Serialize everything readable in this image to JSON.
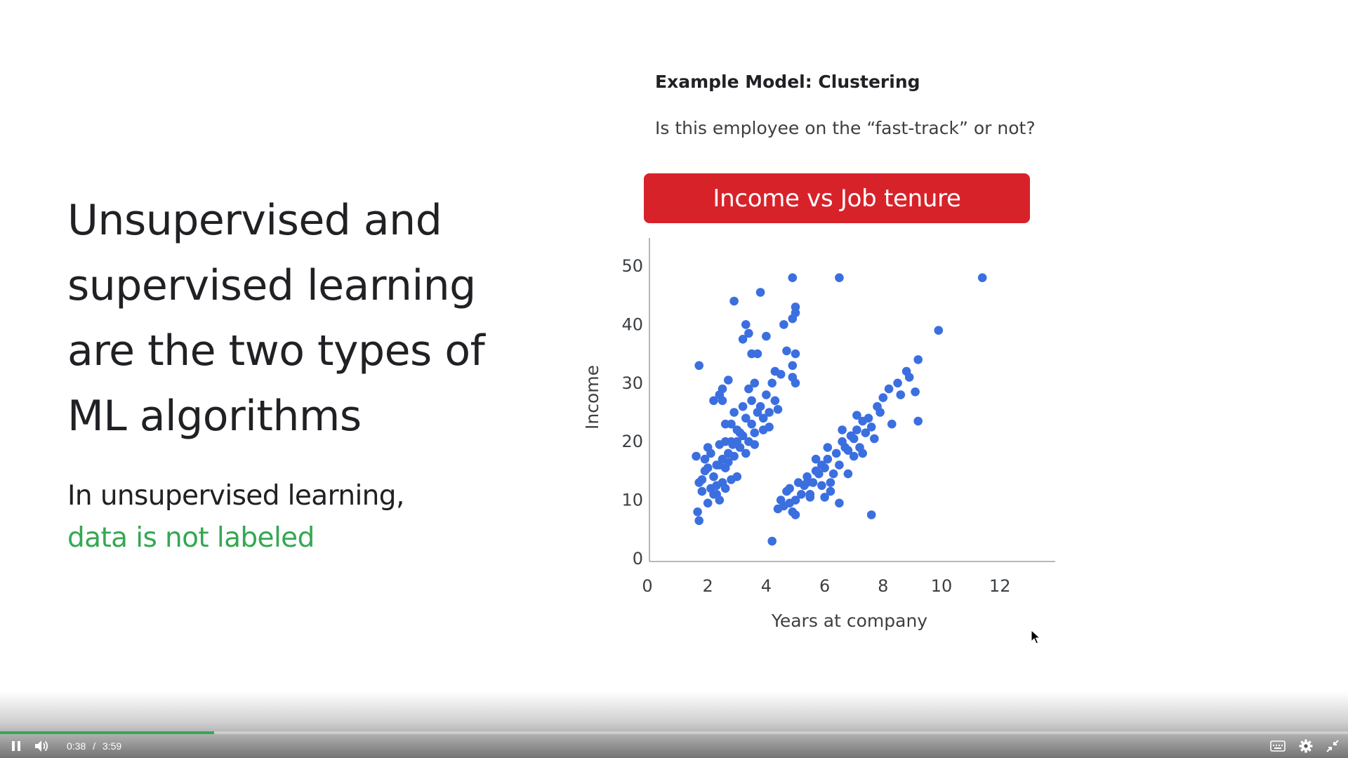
{
  "slide": {
    "heading": "Unsupervised and supervised learning are the two types of ML algorithms",
    "sub_line1": "In unsupervised learning,",
    "sub_line2": "data is not labeled",
    "example_title": "Example Model: Clustering",
    "example_question": "Is this employee on the “fast-track” or not?",
    "banner": "Income vs Job tenure",
    "banner_color": "#d8222a",
    "accent_green": "#34a853"
  },
  "chart_data": {
    "type": "scatter",
    "title": "Income vs Job tenure",
    "xlabel": "Years at company",
    "ylabel": "Income",
    "xlim": [
      0,
      14
    ],
    "ylim": [
      0,
      55
    ],
    "xticks": [
      0,
      2,
      4,
      6,
      8,
      10,
      12
    ],
    "yticks": [
      0,
      10,
      20,
      30,
      40,
      50
    ],
    "grid": false,
    "point_color": "#3b6fe0",
    "series": [
      {
        "points": [
          [
            1.6,
            17.5
          ],
          [
            1.7,
            13
          ],
          [
            1.8,
            11.5
          ],
          [
            1.9,
            15
          ],
          [
            1.7,
            6.5
          ],
          [
            1.65,
            8
          ],
          [
            2.0,
            9.5
          ],
          [
            2.1,
            12
          ],
          [
            2.2,
            14
          ],
          [
            2.0,
            19
          ],
          [
            1.9,
            17
          ],
          [
            2.3,
            16
          ],
          [
            2.1,
            18
          ],
          [
            2.4,
            19.5
          ],
          [
            2.5,
            17
          ],
          [
            2.3,
            11
          ],
          [
            2.5,
            13
          ],
          [
            2.6,
            15.5
          ],
          [
            2.7,
            18
          ],
          [
            2.8,
            20
          ],
          [
            2.9,
            17.5
          ],
          [
            2.6,
            12
          ],
          [
            2.8,
            13.5
          ],
          [
            3.0,
            14
          ],
          [
            2.7,
            16.5
          ],
          [
            3.1,
            19
          ],
          [
            3.2,
            21
          ],
          [
            3.3,
            18
          ],
          [
            3.0,
            22
          ],
          [
            3.4,
            20
          ],
          [
            3.5,
            23
          ],
          [
            3.6,
            21.5
          ],
          [
            3.3,
            24
          ],
          [
            3.7,
            25
          ],
          [
            3.5,
            27
          ],
          [
            3.8,
            26
          ],
          [
            3.9,
            24
          ],
          [
            4.0,
            28
          ],
          [
            4.1,
            22.5
          ],
          [
            3.6,
            30
          ],
          [
            3.4,
            29
          ],
          [
            3.2,
            26
          ],
          [
            2.9,
            25
          ],
          [
            2.8,
            23
          ],
          [
            2.6,
            23
          ],
          [
            2.5,
            27
          ],
          [
            2.4,
            28
          ],
          [
            2.2,
            27
          ],
          [
            2.5,
            29
          ],
          [
            2.7,
            30.5
          ],
          [
            1.7,
            33
          ],
          [
            2.9,
            44
          ],
          [
            3.8,
            45.5
          ],
          [
            3.3,
            40
          ],
          [
            3.2,
            37.5
          ],
          [
            3.4,
            38.5
          ],
          [
            3.5,
            35
          ],
          [
            3.7,
            35
          ],
          [
            4.0,
            38
          ],
          [
            4.3,
            27
          ],
          [
            4.5,
            31.5
          ],
          [
            4.7,
            35.5
          ],
          [
            4.6,
            40
          ],
          [
            4.9,
            41
          ],
          [
            4.9,
            48
          ],
          [
            5.0,
            43
          ],
          [
            5.0,
            42
          ],
          [
            5.0,
            35
          ],
          [
            4.9,
            33
          ],
          [
            4.9,
            31
          ],
          [
            5.0,
            30
          ],
          [
            4.3,
            32
          ],
          [
            4.2,
            30
          ],
          [
            3.1,
            21.5
          ],
          [
            3.0,
            20
          ],
          [
            2.85,
            19.5
          ],
          [
            2.6,
            20
          ],
          [
            2.4,
            16
          ],
          [
            2.3,
            12.5
          ],
          [
            2.4,
            10
          ],
          [
            2.2,
            11
          ],
          [
            2.0,
            15.5
          ],
          [
            1.8,
            13.5
          ],
          [
            3.6,
            19.5
          ],
          [
            3.9,
            22
          ],
          [
            4.1,
            25
          ],
          [
            4.4,
            25.5
          ]
        ]
      },
      {
        "points": [
          [
            4.2,
            3
          ],
          [
            4.5,
            10
          ],
          [
            4.4,
            8.5
          ],
          [
            4.6,
            9
          ],
          [
            4.7,
            11.5
          ],
          [
            4.8,
            12
          ],
          [
            4.9,
            8
          ],
          [
            5.0,
            7.5
          ],
          [
            5.1,
            13
          ],
          [
            5.2,
            11
          ],
          [
            5.3,
            12.5
          ],
          [
            5.4,
            14
          ],
          [
            5.5,
            10.5
          ],
          [
            5.6,
            13
          ],
          [
            5.7,
            15
          ],
          [
            5.8,
            14.5
          ],
          [
            5.9,
            16
          ],
          [
            6.0,
            15.5
          ],
          [
            6.1,
            17
          ],
          [
            6.2,
            13
          ],
          [
            6.3,
            14.5
          ],
          [
            6.4,
            18
          ],
          [
            6.5,
            16
          ],
          [
            6.6,
            20
          ],
          [
            6.7,
            19
          ],
          [
            6.8,
            18.5
          ],
          [
            6.9,
            21
          ],
          [
            7.0,
            20.5
          ],
          [
            7.1,
            22
          ],
          [
            7.2,
            19
          ],
          [
            7.3,
            23.5
          ],
          [
            7.4,
            21.5
          ],
          [
            7.5,
            24
          ],
          [
            7.6,
            22.5
          ],
          [
            7.7,
            20.5
          ],
          [
            7.8,
            26
          ],
          [
            7.9,
            25
          ],
          [
            8.0,
            27.5
          ],
          [
            8.2,
            29
          ],
          [
            8.3,
            23
          ],
          [
            8.5,
            30
          ],
          [
            8.6,
            28
          ],
          [
            8.8,
            32
          ],
          [
            8.9,
            31
          ],
          [
            9.1,
            28.5
          ],
          [
            9.2,
            23.5
          ],
          [
            9.2,
            34
          ],
          [
            6.5,
            9.5
          ],
          [
            7.6,
            7.5
          ],
          [
            6.2,
            11.5
          ],
          [
            5.9,
            12.5
          ],
          [
            6.0,
            10.5
          ],
          [
            5.5,
            11
          ],
          [
            6.8,
            14.5
          ],
          [
            7.3,
            18
          ],
          [
            7.0,
            17.5
          ],
          [
            6.6,
            22
          ],
          [
            7.1,
            24.5
          ],
          [
            5.7,
            17
          ],
          [
            6.1,
            19
          ],
          [
            5.4,
            13
          ],
          [
            5.0,
            10
          ],
          [
            4.8,
            9.5
          ],
          [
            6.5,
            48
          ],
          [
            9.9,
            39
          ],
          [
            11.4,
            48
          ]
        ]
      }
    ]
  },
  "player": {
    "current_time": "0:38",
    "separator": "/",
    "duration": "3:59",
    "progress": 0.159,
    "progress_color": "#34a853",
    "buttons": [
      "pause-icon",
      "volume-icon",
      "captions-icon",
      "settings-gear-icon",
      "exit-fullscreen-icon"
    ]
  }
}
